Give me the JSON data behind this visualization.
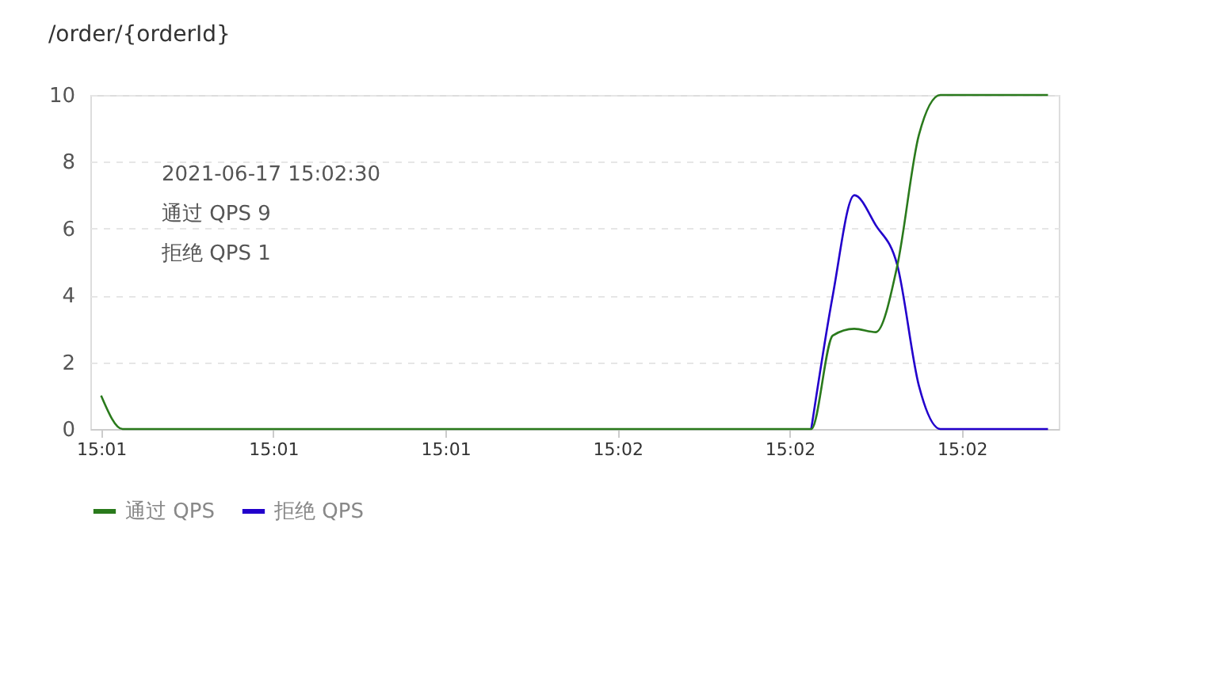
{
  "chart_data": {
    "type": "line",
    "title": "/order/{orderId}",
    "categories": [
      "15:01",
      null,
      null,
      null,
      null,
      null,
      null,
      null,
      "15:01",
      null,
      null,
      null,
      null,
      null,
      null,
      null,
      "15:01",
      null,
      null,
      null,
      null,
      null,
      null,
      null,
      "15:02",
      null,
      null,
      null,
      null,
      null,
      null,
      null,
      "15:02",
      null,
      null,
      null,
      null,
      null,
      null,
      null,
      "15:02",
      null,
      null,
      null,
      null
    ],
    "series": [
      {
        "name": "通过 QPS",
        "color": "#2a7a1c",
        "values": [
          1,
          0,
          0,
          0,
          0,
          0,
          0,
          0,
          0,
          0,
          0,
          0,
          0,
          0,
          0,
          0,
          0,
          0,
          0,
          0,
          0,
          0,
          0,
          0,
          0,
          0,
          0,
          0,
          0,
          0,
          0,
          0,
          0,
          0,
          2.8,
          3,
          2.9,
          4.9,
          8.8,
          10,
          10,
          10,
          10,
          10,
          10
        ]
      },
      {
        "name": "拒绝 QPS",
        "color": "#2200cc",
        "values": [
          null,
          null,
          null,
          null,
          null,
          null,
          null,
          null,
          null,
          null,
          null,
          null,
          null,
          null,
          null,
          null,
          null,
          null,
          null,
          null,
          null,
          null,
          null,
          null,
          null,
          null,
          null,
          null,
          null,
          null,
          null,
          null,
          null,
          0,
          4,
          7,
          6.1,
          4.9,
          1.3,
          0,
          0,
          0,
          0,
          0,
          0
        ]
      }
    ],
    "ylim": [
      0,
      10
    ],
    "yticks": [
      0,
      2,
      4,
      6,
      8,
      10
    ],
    "grid": "y",
    "legend": "bottom",
    "marker": "none",
    "line_style": "solid",
    "annotations": [
      "2021-06-17 15:02:30",
      "通过 QPS  9",
      "拒绝 QPS  1"
    ]
  }
}
